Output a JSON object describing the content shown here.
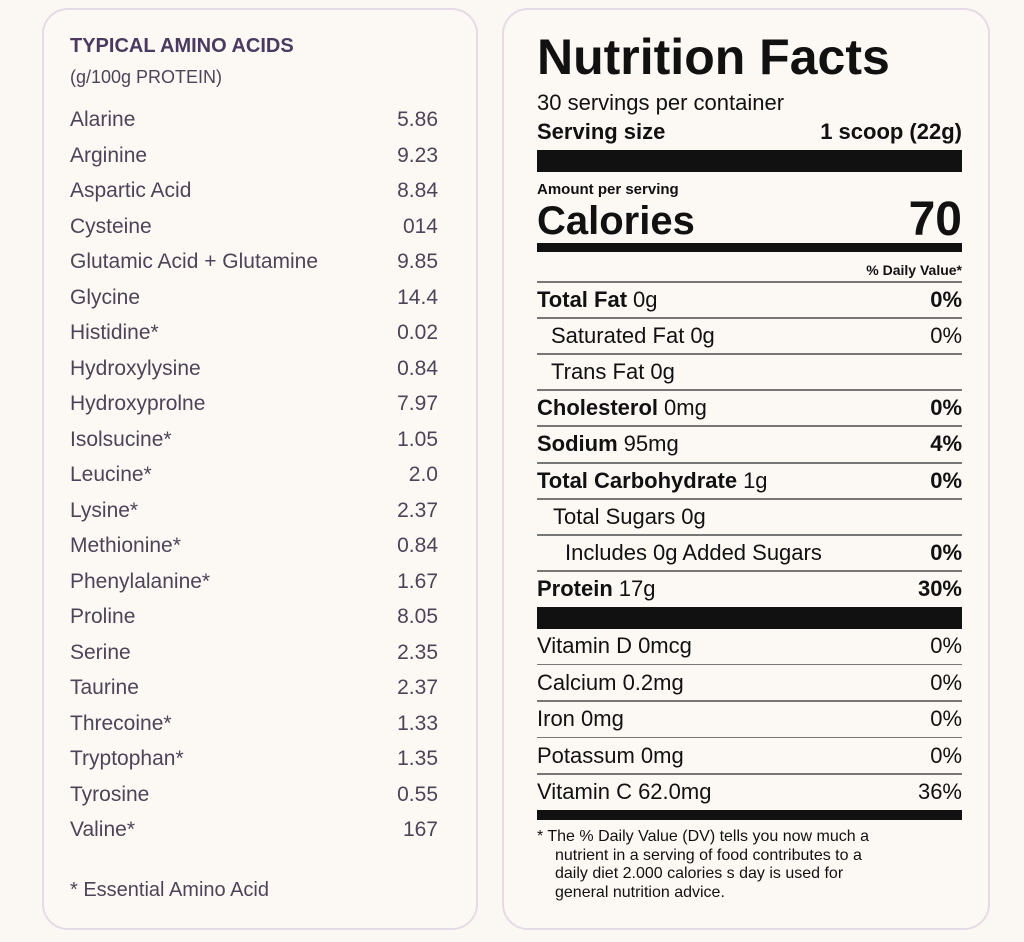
{
  "amino_panel": {
    "title": "TYPICAL AMINO ACIDS",
    "subtitle": "(g/100g PROTEIN)",
    "rows": [
      [
        "Alarine",
        "5.86"
      ],
      [
        "Arginine",
        "9.23"
      ],
      [
        "Aspartic Acid",
        "8.84"
      ],
      [
        "Cysteine",
        "014"
      ],
      [
        "Glutamic Acid + Glutamine",
        "9.85"
      ],
      [
        "Glycine",
        "14.4"
      ],
      [
        "Histidine*",
        "0.02"
      ],
      [
        "Hydroxylysine",
        "0.84"
      ],
      [
        "Hydroxyprolne",
        "7.97"
      ],
      [
        "Isolsucine*",
        "1.05"
      ],
      [
        "Leucine*",
        "2.0"
      ],
      [
        "Lysine*",
        "2.37"
      ],
      [
        "Methionine*",
        "0.84"
      ],
      [
        "Phenylalanine*",
        "1.67"
      ],
      [
        "Proline",
        "8.05"
      ],
      [
        "Serine",
        "2.35"
      ],
      [
        "Taurine",
        "2.37"
      ],
      [
        "Threcoine*",
        "1.33"
      ],
      [
        "Tryptophan*",
        "1.35"
      ],
      [
        "Tyrosine",
        "0.55"
      ],
      [
        "Valine*",
        "167"
      ]
    ],
    "footnote": "* Essential Amino Acid"
  },
  "nutrition_panel": {
    "title": "Nutrition Facts",
    "servings": "30 servings per container",
    "serving_size_label": "Serving size",
    "serving_size": "1 scoop (22g)",
    "amount_per_serving": "Amount per serving",
    "calories_label": "Calories",
    "calories": "70",
    "daily_value_header": "% Daily Value*",
    "rows": [
      {
        "label": "Total Fat",
        "amount": "0g",
        "dv": "0%"
      },
      {
        "label": "Saturated Fat",
        "amount": "0g",
        "dv": "0%"
      },
      {
        "label": "Trans Fat",
        "amount": "0g"
      },
      {
        "label": "Cholesterol",
        "amount": "0mg",
        "dv": "0%"
      },
      {
        "label": "Sodium",
        "amount": "95mg",
        "dv": "4%"
      },
      {
        "label": "Total Carbohydrate",
        "amount": "1g",
        "dv": "0%"
      },
      {
        "label": "Total Sugars",
        "amount": "0g"
      },
      {
        "label": "Includes 0g Added Sugars",
        "dv": "0%"
      },
      {
        "label": "Protein",
        "amount": "17g",
        "dv": "30%"
      }
    ],
    "vitamins": [
      {
        "label": "Vitamin D 0mcg",
        "dv": "0%"
      },
      {
        "label": "Calcium 0.2mg",
        "dv": "0%"
      },
      {
        "label": "Iron 0mg",
        "dv": "0%"
      },
      {
        "label": "Potassum 0mg",
        "dv": "0%"
      },
      {
        "label": "Vitamin C 62.0mg",
        "dv": "36%"
      }
    ],
    "footnote": [
      "* The % Daily Value (DV) tells you now much a",
      "nutrient in a serving of food contributes to a",
      "daily diet 2.000 calories s day is used for",
      "general nutrition advice."
    ]
  }
}
